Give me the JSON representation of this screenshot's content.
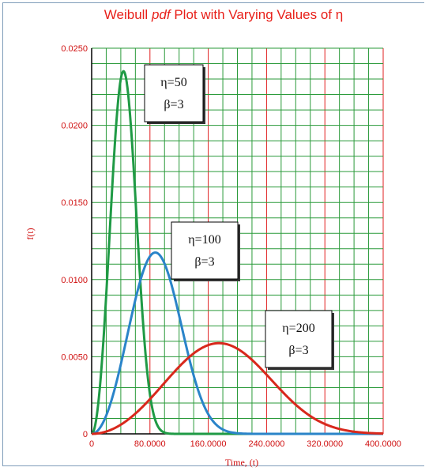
{
  "chart_data": {
    "type": "line",
    "title_prefix": "Weibull",
    "title_italic": "pdf",
    "title_suffix": "Plot with Varying Values of η",
    "xlabel": "Time, (t)",
    "ylabel": "f(t)",
    "xlim": [
      0,
      400
    ],
    "ylim": [
      0,
      0.025
    ],
    "x_ticks": [
      0,
      80,
      160,
      240,
      320,
      400
    ],
    "x_tick_labels": [
      "0",
      "80.0000",
      "160.0000",
      "240.0000",
      "320.0000",
      "400.0000"
    ],
    "y_ticks": [
      0,
      0.005,
      0.01,
      0.015,
      0.02,
      0.025
    ],
    "y_tick_labels": [
      "0",
      "0.0050",
      "0.0100",
      "0.0150",
      "0.0200",
      "0.0250"
    ],
    "grid": true,
    "grid_colors": {
      "x_major": "#e02020",
      "minor": "#2a9a3a"
    },
    "series": [
      {
        "eta": 50,
        "beta": 3,
        "color": "#1f9a45",
        "annotation_lines": [
          "η=50",
          "β=3"
        ]
      },
      {
        "eta": 100,
        "beta": 3,
        "color": "#2a84c9",
        "annotation_lines": [
          "η=100",
          "β=3"
        ]
      },
      {
        "eta": 200,
        "beta": 3,
        "color": "#d8281c",
        "annotation_lines": [
          "η=200",
          "β=3"
        ]
      }
    ]
  }
}
